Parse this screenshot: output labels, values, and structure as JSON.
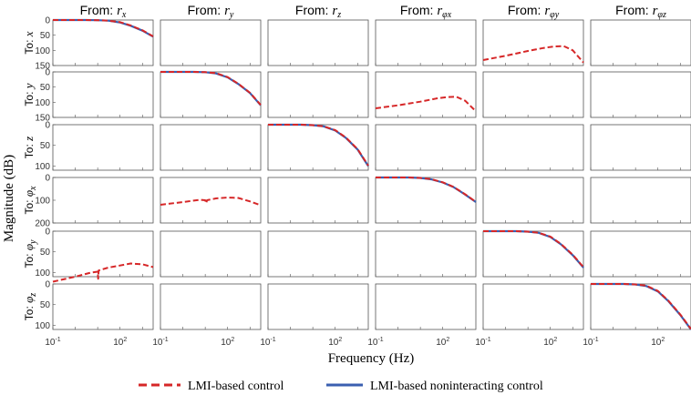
{
  "chart_data": {
    "type": "line",
    "xlabel": "Frequency (Hz)",
    "ylabel": "Magnitude (dB)",
    "xscale": "log",
    "xlim": [
      0.1,
      3000
    ],
    "x_tick_labels": [
      {
        "base": "10",
        "exp": "-1",
        "x": 0.1
      },
      {
        "base": "10",
        "exp": "2",
        "x": 100
      }
    ],
    "legend": {
      "placement": "bottom",
      "entries": [
        {
          "label": "LMI-based control",
          "color": "#d62728",
          "style": "dashed"
        },
        {
          "label": "LMI-based noninteracting control",
          "color": "#3a5fb0",
          "style": "solid"
        }
      ]
    },
    "columns": [
      {
        "prefix": "From: ",
        "symbol": "r",
        "sub": "x"
      },
      {
        "prefix": "From: ",
        "symbol": "r",
        "sub": "y"
      },
      {
        "prefix": "From: ",
        "symbol": "r",
        "sub": "z"
      },
      {
        "prefix": "From: ",
        "symbol": "r",
        "sub": "φx"
      },
      {
        "prefix": "From: ",
        "symbol": "r",
        "sub": "φy"
      },
      {
        "prefix": "From: ",
        "symbol": "r",
        "sub": "φz"
      }
    ],
    "rows": [
      {
        "prefix": "To: ",
        "symbol": "x",
        "sub": "",
        "ylim": [
          0,
          150
        ],
        "y_ticks": [
          0,
          50,
          100,
          150
        ]
      },
      {
        "prefix": "To: ",
        "symbol": "y",
        "sub": "",
        "ylim": [
          0,
          150
        ],
        "y_ticks": [
          0,
          50,
          100,
          150
        ]
      },
      {
        "prefix": "To: ",
        "symbol": "z",
        "sub": "",
        "ylim": [
          0,
          110
        ],
        "y_ticks": [
          0,
          50,
          100
        ]
      },
      {
        "prefix": "To: ",
        "symbol": "φ",
        "sub": "x",
        "ylim": [
          0,
          200
        ],
        "y_ticks": [
          0,
          100,
          200
        ]
      },
      {
        "prefix": "To: ",
        "symbol": "φ",
        "sub": "y",
        "ylim": [
          0,
          110
        ],
        "y_ticks": [
          0,
          50,
          100
        ]
      },
      {
        "prefix": "To: ",
        "symbol": "φ",
        "sub": "z",
        "ylim": [
          0,
          110
        ],
        "y_ticks": [
          0,
          50,
          100
        ]
      }
    ],
    "curves": [
      {
        "row": 0,
        "col": 0,
        "series": 1,
        "x": [
          0.1,
          1,
          3,
          10,
          30,
          100,
          300,
          1000,
          3000
        ],
        "y": [
          0,
          0,
          0,
          0.5,
          2,
          8,
          19,
          35,
          55
        ]
      },
      {
        "row": 0,
        "col": 0,
        "series": 0,
        "x": [
          0.1,
          1,
          3,
          10,
          30,
          100,
          300,
          1000,
          3000
        ],
        "y": [
          0,
          0,
          0,
          0.5,
          2,
          7,
          18,
          34,
          54
        ]
      },
      {
        "row": 0,
        "col": 4,
        "series": 0,
        "x": [
          0.1,
          1,
          10,
          50,
          150,
          400,
          1000,
          3000
        ],
        "y": [
          132,
          118,
          102,
          92,
          87,
          86,
          100,
          140
        ]
      },
      {
        "row": 1,
        "col": 1,
        "series": 1,
        "x": [
          0.1,
          1,
          3,
          10,
          30,
          100,
          300,
          1000,
          3000
        ],
        "y": [
          0,
          0,
          0,
          1,
          5,
          18,
          40,
          70,
          110
        ]
      },
      {
        "row": 1,
        "col": 1,
        "series": 0,
        "x": [
          0.1,
          1,
          3,
          10,
          30,
          100,
          300,
          1000,
          3000
        ],
        "y": [
          0,
          0,
          0,
          1,
          4,
          17,
          39,
          69,
          109
        ]
      },
      {
        "row": 1,
        "col": 3,
        "series": 0,
        "x": [
          0.1,
          1,
          10,
          50,
          150,
          400,
          1000,
          3000
        ],
        "y": [
          120,
          110,
          98,
          88,
          83,
          82,
          95,
          130
        ]
      },
      {
        "row": 2,
        "col": 2,
        "series": 1,
        "x": [
          0.1,
          1,
          3,
          10,
          30,
          100,
          300,
          1000,
          3000
        ],
        "y": [
          0,
          0,
          0,
          1,
          4,
          14,
          32,
          60,
          100
        ]
      },
      {
        "row": 2,
        "col": 2,
        "series": 0,
        "x": [
          0.1,
          1,
          3,
          10,
          30,
          100,
          300,
          1000,
          3000
        ],
        "y": [
          0,
          0,
          0,
          1,
          4,
          13,
          31,
          59,
          99
        ]
      },
      {
        "row": 3,
        "col": 1,
        "series": 0,
        "x": [
          0.1,
          1,
          6,
          10,
          11,
          12,
          30,
          100,
          300,
          1000,
          3000
        ],
        "y": [
          120,
          108,
          98,
          100,
          113,
          100,
          92,
          88,
          90,
          105,
          122
        ]
      },
      {
        "row": 3,
        "col": 3,
        "series": 1,
        "x": [
          0.1,
          1,
          3,
          10,
          30,
          100,
          300,
          1000,
          3000
        ],
        "y": [
          0,
          0,
          0,
          2,
          8,
          22,
          42,
          75,
          108
        ]
      },
      {
        "row": 3,
        "col": 3,
        "series": 0,
        "x": [
          0.1,
          1,
          3,
          10,
          30,
          100,
          300,
          1000,
          3000
        ],
        "y": [
          0,
          0,
          0,
          2,
          7,
          21,
          41,
          74,
          107
        ]
      },
      {
        "row": 4,
        "col": 0,
        "series": 0,
        "x": [
          0.1,
          1,
          5,
          10,
          10.5,
          11,
          30,
          100,
          300,
          1000,
          3000
        ],
        "y": [
          122,
          110,
          100,
          98,
          115,
          95,
          88,
          83,
          78,
          80,
          87
        ]
      },
      {
        "row": 4,
        "col": 4,
        "series": 1,
        "x": [
          0.1,
          1,
          3,
          10,
          30,
          100,
          300,
          1000,
          3000
        ],
        "y": [
          0,
          0,
          0,
          1,
          4,
          14,
          32,
          58,
          88
        ]
      },
      {
        "row": 4,
        "col": 4,
        "series": 0,
        "x": [
          0.1,
          1,
          3,
          10,
          30,
          100,
          300,
          1000,
          3000
        ],
        "y": [
          0,
          0,
          0,
          1,
          4,
          13,
          31,
          57,
          87
        ]
      },
      {
        "row": 5,
        "col": 5,
        "series": 1,
        "x": [
          0.1,
          1,
          3,
          10,
          30,
          100,
          300,
          1000,
          3000
        ],
        "y": [
          0,
          0,
          0,
          1,
          5,
          18,
          42,
          75,
          110
        ]
      },
      {
        "row": 5,
        "col": 5,
        "series": 0,
        "x": [
          0.1,
          1,
          3,
          10,
          30,
          100,
          300,
          1000,
          3000
        ],
        "y": [
          0,
          0,
          0,
          1,
          4,
          17,
          41,
          74,
          109
        ]
      }
    ]
  }
}
